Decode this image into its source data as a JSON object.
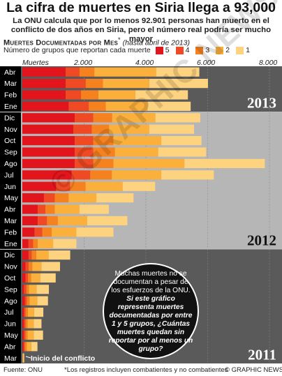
{
  "title": "La cifra de muertes en Siria llega a 93,000",
  "subtitle": "La ONU calcula que por lo menos 92.901 personas han muerto en el conflicto de dos años en Siria, pero el número real podría ser mucho mayor",
  "section_heading": "Muertes Documentadas por Mes",
  "section_heading_mark": "*",
  "section_note": "(hasta abril de 2013)",
  "legend_title": "Número de grupos que reportan cada muerte",
  "legend": [
    {
      "label": "5",
      "color": "#e2141c"
    },
    {
      "label": "4",
      "color": "#ef4a23"
    },
    {
      "label": "3",
      "color": "#f6821f"
    },
    {
      "label": "2",
      "color": "#fbb03b"
    },
    {
      "label": "1",
      "color": "#fed37f"
    }
  ],
  "callout": {
    "line1": "Muchas muertes no se documentan a pesar de los esfuerzos de la ONU.",
    "line2": "Si este gráfico representa muertes documentadas por entre 1 y 5 grupos, ¿Cuántas muertes quedan sin reportar por al menos un grupo?"
  },
  "start_label": "Inicio del conflicto",
  "watermark": "© GRAPHIC NEWS",
  "footer": {
    "source": "Fuente: ONU",
    "note": "*Los registros incluyen combatientes y no combatientes",
    "credit": "© GRAPHIC NEWS"
  },
  "chart_data": {
    "type": "bar",
    "orientation": "horizontal",
    "stacked": true,
    "xlabel": "Muertes",
    "xlim": [
      0,
      8000
    ],
    "xticks": [
      "2.000",
      "4.000",
      "6.000",
      "8.000"
    ],
    "xtick_values": [
      2000,
      4000,
      6000,
      8000
    ],
    "series_names": [
      "5",
      "4",
      "3",
      "2",
      "1"
    ],
    "colors": [
      "#e2141c",
      "#ef4a23",
      "#f6821f",
      "#fbb03b",
      "#fed37f"
    ],
    "years": [
      {
        "year": "2013",
        "background": "#5a5a5a",
        "rows": [
          {
            "month": "Abr",
            "values": [
              1400,
              450,
              480,
              2000,
              1400
            ]
          },
          {
            "month": "Mar",
            "values": [
              1400,
              650,
              560,
              1500,
              1900
            ]
          },
          {
            "month": "Feb",
            "values": [
              1400,
              500,
              560,
              1200,
              1700
            ]
          },
          {
            "month": "Ene",
            "values": [
              1500,
              650,
              550,
              1350,
              1400
            ]
          }
        ]
      },
      {
        "year": "2012",
        "background": "#b6b6b6",
        "rows": [
          {
            "month": "Dic",
            "values": [
              1700,
              600,
              610,
              1400,
              1450
            ]
          },
          {
            "month": "Nov",
            "values": [
              1650,
              600,
              560,
              1300,
              1450
            ]
          },
          {
            "month": "Oct",
            "values": [
              1700,
              600,
              650,
              1550,
              1300
            ]
          },
          {
            "month": "Sep",
            "values": [
              1700,
              600,
              700,
              1400,
              1550
            ]
          },
          {
            "month": "Ago",
            "values": [
              1700,
              600,
              650,
              2300,
              2600
            ]
          },
          {
            "month": "Jul",
            "values": [
              1600,
              600,
              700,
              1600,
              1700
            ]
          },
          {
            "month": "Jun",
            "values": [
              1100,
              450,
              500,
              1200,
              1050
            ]
          },
          {
            "month": "May",
            "values": [
              700,
              350,
              450,
              900,
              1200
            ]
          },
          {
            "month": "Abr",
            "values": [
              500,
              250,
              300,
              800,
              950
            ]
          },
          {
            "month": "Mar",
            "values": [
              500,
              300,
              350,
              950,
              1300
            ]
          },
          {
            "month": "Feb",
            "values": [
              400,
              250,
              300,
              800,
              1200
            ]
          },
          {
            "month": "Ene",
            "values": [
              200,
              150,
              150,
              500,
              750
            ]
          }
        ]
      },
      {
        "year": "2011",
        "background": "#5a5a5a",
        "rows": [
          {
            "month": "Dic",
            "values": [
              200,
              100,
              150,
              400,
              700
            ]
          },
          {
            "month": "Nov",
            "values": [
              100,
              100,
              120,
              300,
              600
            ]
          },
          {
            "month": "Oct",
            "values": [
              100,
              80,
              100,
              300,
              500
            ]
          },
          {
            "month": "Sep",
            "values": [
              50,
              80,
              80,
              250,
              400
            ]
          },
          {
            "month": "Ago",
            "values": [
              80,
              60,
              90,
              250,
              350
            ]
          },
          {
            "month": "Jul",
            "values": [
              50,
              50,
              80,
              200,
              300
            ]
          },
          {
            "month": "Jun",
            "values": [
              50,
              50,
              70,
              200,
              250
            ]
          },
          {
            "month": "May",
            "values": [
              50,
              50,
              70,
              200,
              300
            ]
          },
          {
            "month": "Abr",
            "values": [
              40,
              40,
              60,
              150,
              200
            ]
          },
          {
            "month": "Mar",
            "values": [
              0,
              0,
              10,
              20,
              30
            ]
          }
        ]
      }
    ]
  }
}
